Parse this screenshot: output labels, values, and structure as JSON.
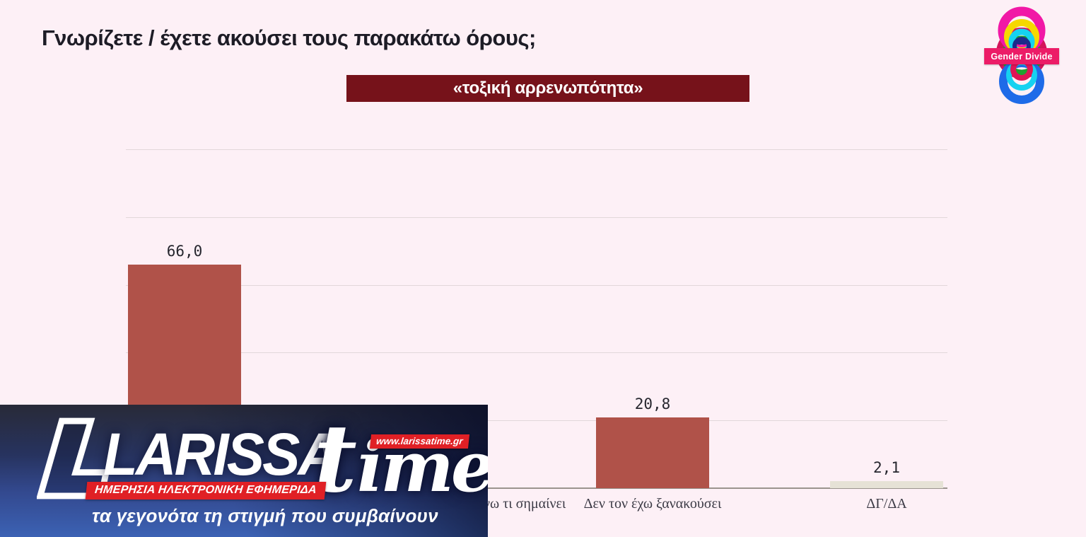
{
  "page": {
    "title": "Γνωρίζετε / έχετε ακούσει τους παρακάτω όρους;",
    "background_color": "#fdf0f6"
  },
  "term_banner": {
    "label": "«τοξική αρρενωπότητα»",
    "background_color": "#76121a",
    "text_color": "#ffffff"
  },
  "chart_data": {
    "type": "bar",
    "title": "«τοξική αρρενωπότητα»",
    "categories": [
      "",
      "νω τι σημαίνει",
      "Δεν τον έχω ξανακούσει",
      "ΔΓ/ΔΑ"
    ],
    "values": [
      66.0,
      null,
      20.8,
      2.1
    ],
    "value_labels": [
      "66,0",
      null,
      "20,8",
      "2,1"
    ],
    "ylim": [
      0,
      100
    ],
    "gridline_values": [
      20,
      40,
      60,
      80,
      100
    ],
    "grid": true,
    "legend": "none",
    "bar_colors": [
      "#b05249",
      "#b05249",
      "#b05249",
      "#e6e2d6"
    ],
    "gridline_color": "#e2d7da",
    "axis_line_color": "#9b948e",
    "value_label_color": "#26262e",
    "category_label_color": "#3b3a45"
  },
  "gender_divide_logo": {
    "label": "Gender Divide",
    "banner_color": "#ec1c67",
    "ring_colors": [
      "#f118a6",
      "#f5d800",
      "#15d2f0",
      "#1fa32e",
      "#d4145a",
      "#1b2a8a",
      "#1e6be8",
      "#e01556"
    ]
  },
  "larissa_banner": {
    "brand_main": "LARISSA",
    "brand_suffix": "time",
    "url_badge": "www.larissatime.gr",
    "subtitle_badge": "ΗΜΕΡΗΣΙΑ ΗΛΕΚΤΡΟΝΙΚΗ ΕΦΗΜΕΡΙΔΑ",
    "tagline": "τα γεγονότα τη στιγμή που συμβαίνουν",
    "badge_color": "#e02025"
  }
}
